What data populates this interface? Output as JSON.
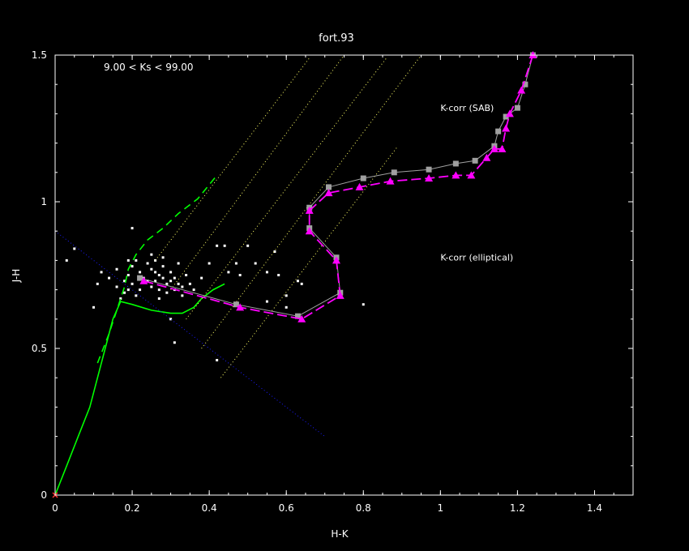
{
  "chart_data": {
    "type": "scatter",
    "title": "fort.93",
    "xlabel": "H-K",
    "ylabel": "J-H",
    "xlim": [
      0,
      1.5
    ],
    "ylim": [
      0,
      1.5
    ],
    "xticks": [
      "0",
      "0.2",
      "0.4",
      "0.6",
      "0.8",
      "1",
      "1.2",
      "1.4"
    ],
    "xtick_values": [
      0,
      0.2,
      0.4,
      0.6,
      0.8,
      1.0,
      1.2,
      1.4
    ],
    "yticks": [
      "0",
      "0.5",
      "1",
      "1.5"
    ],
    "ytick_values": [
      0,
      0.5,
      1.0,
      1.5
    ],
    "range_label": "9.00 < Ks <  99.00",
    "annotations": [
      {
        "text": "K-corr (SAB)",
        "x": 1.0,
        "y": 1.31,
        "color": "#ff00ff"
      },
      {
        "text": "K-corr (elliptical)",
        "x": 1.0,
        "y": 0.8,
        "color": "#c8c8c8"
      }
    ],
    "colors": {
      "background": "#000000",
      "frame": "#ffffff",
      "stars": "#ffffff",
      "dwarf_locus": "#00ff00",
      "reddening_lines": "#ffff66",
      "diagonal": "#1a1aff",
      "sab_track": "#ff00ff",
      "elliptical_track": "#a0a0a0",
      "origin_marker": "#ff3333"
    },
    "origin_marker": {
      "x": 0.0,
      "y": 0.0
    },
    "series": [
      {
        "kind": "points",
        "color": "#ffffff",
        "points": [
          [
            0.05,
            0.84
          ],
          [
            0.03,
            0.8
          ],
          [
            0.12,
            0.76
          ],
          [
            0.14,
            0.74
          ],
          [
            0.11,
            0.72
          ],
          [
            0.1,
            0.64
          ],
          [
            0.16,
            0.71
          ],
          [
            0.18,
            0.73
          ],
          [
            0.19,
            0.75
          ],
          [
            0.2,
            0.78
          ],
          [
            0.21,
            0.8
          ],
          [
            0.22,
            0.76
          ],
          [
            0.23,
            0.74
          ],
          [
            0.24,
            0.79
          ],
          [
            0.25,
            0.77
          ],
          [
            0.26,
            0.73
          ],
          [
            0.27,
            0.75
          ],
          [
            0.28,
            0.78
          ],
          [
            0.29,
            0.72
          ],
          [
            0.3,
            0.76
          ],
          [
            0.31,
            0.74
          ],
          [
            0.32,
            0.79
          ],
          [
            0.33,
            0.71
          ],
          [
            0.34,
            0.75
          ],
          [
            0.35,
            0.72
          ],
          [
            0.2,
            0.72
          ],
          [
            0.22,
            0.7
          ],
          [
            0.25,
            0.71
          ],
          [
            0.27,
            0.7
          ],
          [
            0.29,
            0.69
          ],
          [
            0.31,
            0.7
          ],
          [
            0.24,
            0.73
          ],
          [
            0.26,
            0.76
          ],
          [
            0.28,
            0.74
          ],
          [
            0.3,
            0.73
          ],
          [
            0.32,
            0.72
          ],
          [
            0.19,
            0.7
          ],
          [
            0.18,
            0.69
          ],
          [
            0.17,
            0.67
          ],
          [
            0.21,
            0.68
          ],
          [
            0.16,
            0.77
          ],
          [
            0.19,
            0.8
          ],
          [
            0.2,
            0.91
          ],
          [
            0.27,
            0.67
          ],
          [
            0.3,
            0.6
          ],
          [
            0.31,
            0.52
          ],
          [
            0.33,
            0.68
          ],
          [
            0.36,
            0.7
          ],
          [
            0.38,
            0.74
          ],
          [
            0.4,
            0.79
          ],
          [
            0.42,
            0.85
          ],
          [
            0.44,
            0.85
          ],
          [
            0.45,
            0.76
          ],
          [
            0.5,
            0.85
          ],
          [
            0.47,
            0.79
          ],
          [
            0.48,
            0.75
          ],
          [
            0.52,
            0.79
          ],
          [
            0.55,
            0.76
          ],
          [
            0.57,
            0.83
          ],
          [
            0.58,
            0.75
          ],
          [
            0.6,
            0.68
          ],
          [
            0.63,
            0.73
          ],
          [
            0.64,
            0.72
          ],
          [
            0.42,
            0.46
          ],
          [
            0.8,
            0.65
          ],
          [
            0.6,
            0.64
          ],
          [
            0.55,
            0.66
          ],
          [
            0.25,
            0.82
          ],
          [
            0.26,
            0.8
          ],
          [
            0.28,
            0.81
          ]
        ]
      },
      {
        "kind": "line",
        "color": "#00ff00",
        "points": [
          [
            0.0,
            0.0
          ],
          [
            0.03,
            0.1
          ],
          [
            0.06,
            0.2
          ],
          [
            0.09,
            0.3
          ],
          [
            0.11,
            0.4
          ],
          [
            0.13,
            0.5
          ],
          [
            0.15,
            0.6
          ],
          [
            0.17,
            0.66
          ],
          [
            0.2,
            0.65
          ],
          [
            0.25,
            0.63
          ],
          [
            0.3,
            0.62
          ],
          [
            0.33,
            0.62
          ],
          [
            0.36,
            0.64
          ],
          [
            0.38,
            0.67
          ],
          [
            0.41,
            0.7
          ],
          [
            0.44,
            0.72
          ]
        ]
      },
      {
        "kind": "dashed-line",
        "color": "#00ff00",
        "points": [
          [
            0.11,
            0.45
          ],
          [
            0.14,
            0.55
          ],
          [
            0.16,
            0.63
          ],
          [
            0.18,
            0.71
          ],
          [
            0.19,
            0.77
          ],
          [
            0.21,
            0.82
          ],
          [
            0.24,
            0.87
          ],
          [
            0.28,
            0.91
          ],
          [
            0.32,
            0.96
          ],
          [
            0.37,
            1.01
          ],
          [
            0.42,
            1.09
          ]
        ]
      },
      {
        "kind": "dotted-line",
        "color": "#1a1aff",
        "points": [
          [
            0.0,
            0.9
          ],
          [
            0.7,
            0.2
          ]
        ]
      },
      {
        "kind": "dotted-line",
        "color": "#ffff66",
        "points": [
          [
            0.26,
            0.8
          ],
          [
            0.66,
            1.49
          ]
        ]
      },
      {
        "kind": "dotted-line",
        "color": "#ffff66",
        "points": [
          [
            0.3,
            0.7
          ],
          [
            0.75,
            1.5
          ]
        ]
      },
      {
        "kind": "dotted-line",
        "color": "#ffff66",
        "points": [
          [
            0.34,
            0.6
          ],
          [
            0.86,
            1.49
          ]
        ]
      },
      {
        "kind": "dotted-line",
        "color": "#ffff66",
        "points": [
          [
            0.38,
            0.5
          ],
          [
            0.95,
            1.5
          ]
        ]
      },
      {
        "kind": "dotted-line",
        "color": "#ffff66",
        "points": [
          [
            0.43,
            0.4
          ],
          [
            0.89,
            1.19
          ]
        ]
      },
      {
        "kind": "track",
        "color": "#a0a0a0",
        "marker": "square",
        "points": [
          [
            0.22,
            0.74
          ],
          [
            0.47,
            0.65
          ],
          [
            0.63,
            0.61
          ],
          [
            0.74,
            0.69
          ],
          [
            0.73,
            0.81
          ],
          [
            0.66,
            0.91
          ],
          [
            0.66,
            0.98
          ],
          [
            0.71,
            1.05
          ],
          [
            0.8,
            1.08
          ],
          [
            0.88,
            1.1
          ],
          [
            0.97,
            1.11
          ],
          [
            1.04,
            1.13
          ],
          [
            1.09,
            1.14
          ],
          [
            1.14,
            1.19
          ],
          [
            1.15,
            1.24
          ],
          [
            1.17,
            1.29
          ],
          [
            1.2,
            1.32
          ],
          [
            1.22,
            1.4
          ],
          [
            1.24,
            1.5
          ]
        ]
      },
      {
        "kind": "track",
        "color": "#ff00ff",
        "marker": "triangle",
        "points": [
          [
            0.23,
            0.73
          ],
          [
            0.48,
            0.64
          ],
          [
            0.64,
            0.6
          ],
          [
            0.74,
            0.68
          ],
          [
            0.73,
            0.8
          ],
          [
            0.66,
            0.9
          ],
          [
            0.66,
            0.97
          ],
          [
            0.71,
            1.03
          ],
          [
            0.79,
            1.05
          ],
          [
            0.87,
            1.07
          ],
          [
            0.97,
            1.08
          ],
          [
            1.04,
            1.09
          ],
          [
            1.08,
            1.09
          ],
          [
            1.12,
            1.15
          ],
          [
            1.14,
            1.18
          ],
          [
            1.16,
            1.18
          ],
          [
            1.17,
            1.25
          ],
          [
            1.18,
            1.3
          ],
          [
            1.21,
            1.38
          ],
          [
            1.24,
            1.5
          ]
        ]
      }
    ]
  }
}
